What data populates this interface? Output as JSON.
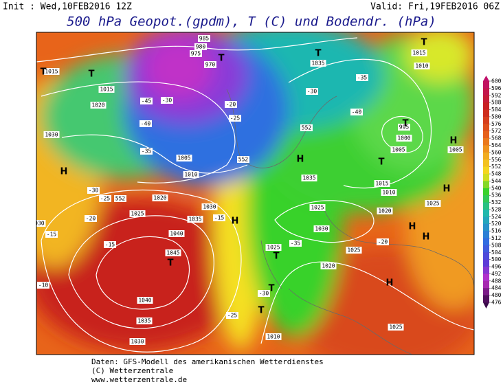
{
  "header": {
    "init": "Init : Wed,10FEB2016 12Z",
    "valid": "Valid: Fri,19FEB2016 06Z",
    "title": "500 hPa Geopot.(gpdm), T (C) und Bodendr. (hPa)"
  },
  "colorbar": {
    "ticks": [
      "600",
      "596",
      "592",
      "588",
      "584",
      "580",
      "576",
      "572",
      "568",
      "564",
      "560",
      "556",
      "552",
      "548",
      "544",
      "540",
      "536",
      "532",
      "528",
      "524",
      "520",
      "516",
      "512",
      "508",
      "504",
      "500",
      "496",
      "492",
      "488",
      "484",
      "480",
      "476"
    ]
  },
  "map": {
    "isobar_labels": [
      "1015",
      "1015",
      "1020",
      "1030",
      "985",
      "980",
      "975",
      "970",
      "1035",
      "1015",
      "1010",
      "995",
      "1000",
      "1005",
      "1005",
      "1035",
      "1025",
      "1030",
      "1025",
      "1020",
      "1025",
      "1020",
      "1025",
      "1010",
      "1015",
      "1020",
      "1025",
      "1030",
      "1035",
      "1040",
      "1045",
      "1040",
      "1035",
      "1030",
      "1030",
      "1010",
      "1025",
      "1005",
      "1010"
    ],
    "geopot_labels": [
      "552",
      "552",
      "552"
    ],
    "temp_labels": [
      "-15",
      "-10",
      "-20",
      "-25",
      "-30",
      "-35",
      "-40",
      "-45",
      "-35",
      "-40",
      "-30",
      "-30",
      "-25",
      "-20",
      "-15",
      "-15",
      "-35",
      "-30",
      "-25",
      "-20"
    ],
    "centers": [
      "H",
      "H",
      "H",
      "H",
      "H",
      "H",
      "H",
      "H",
      "T",
      "T",
      "T",
      "T",
      "T",
      "T",
      "T",
      "T",
      "T",
      "T",
      "T"
    ]
  },
  "footer": [
    "Daten: GFS-Modell des amerikanischen Wetterdienstes",
    "(C) Wetterzentrale",
    "www.wetterzentrale.de"
  ]
}
